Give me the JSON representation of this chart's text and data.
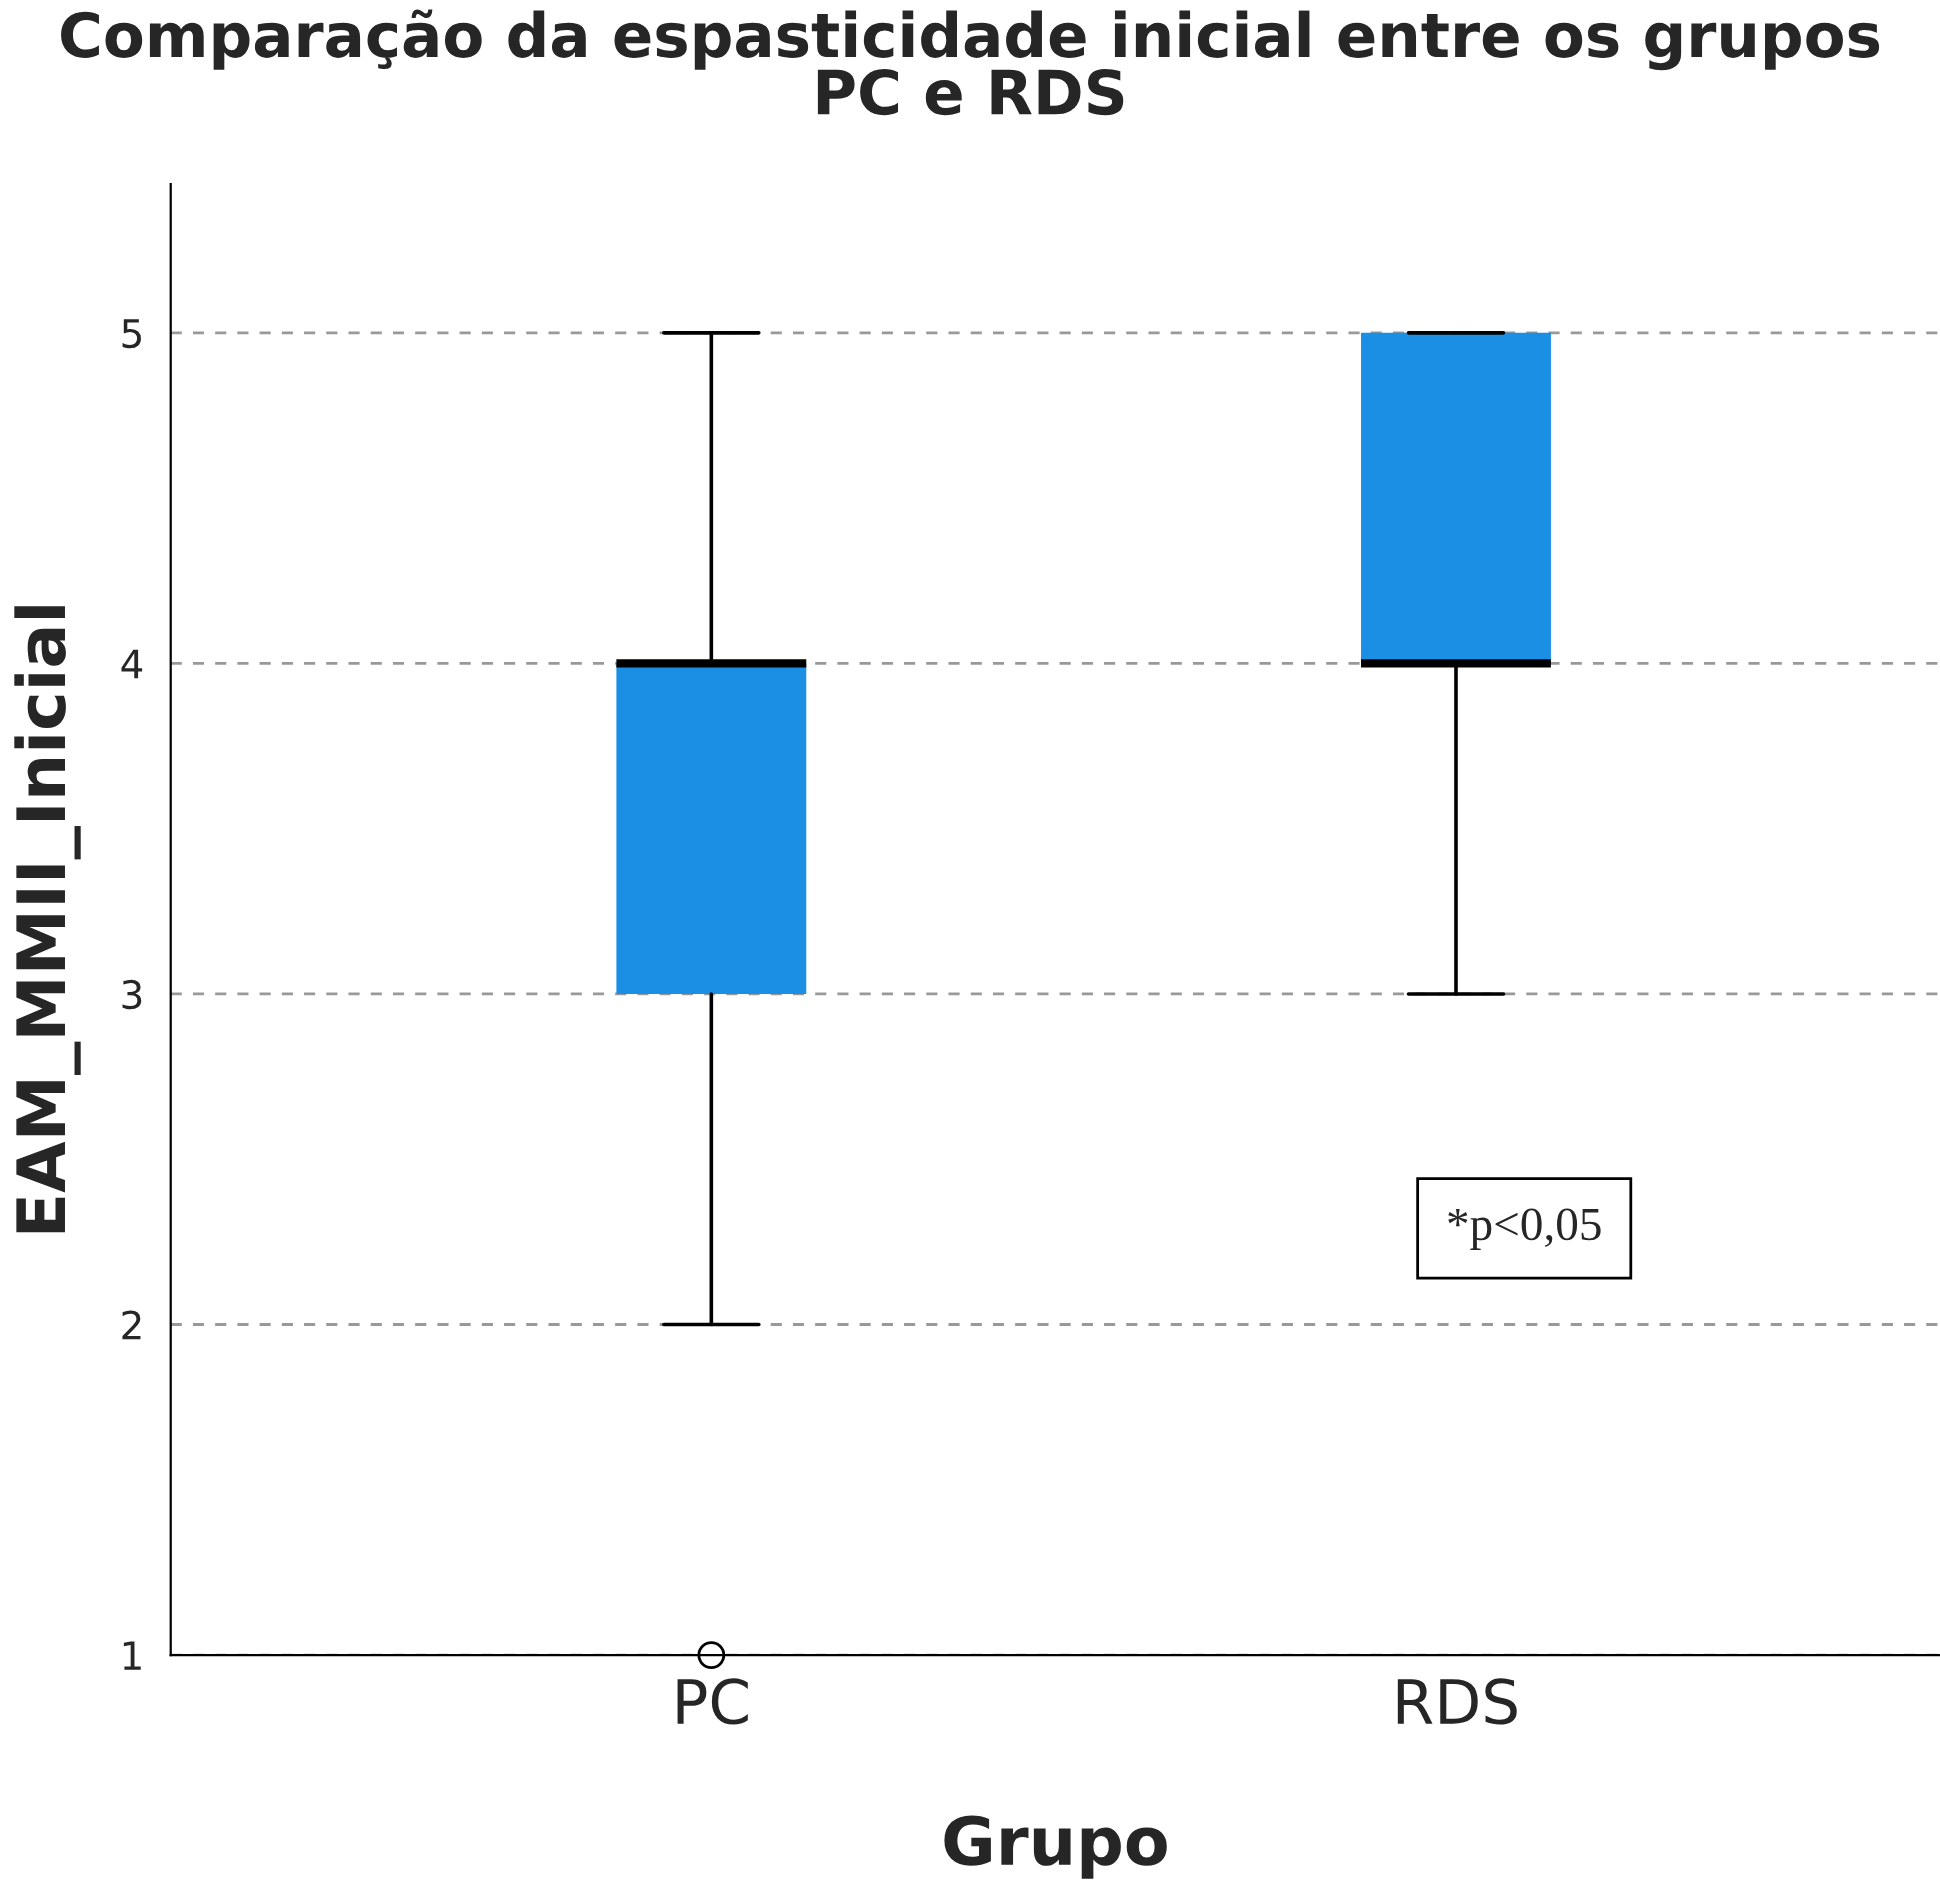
{
  "chart_data": {
    "type": "box",
    "title": "Comparação da espasticidade inicial entre os grupos\nPC e RDS",
    "xlabel": "Grupo",
    "ylabel": "EAM_MMII_Inicial",
    "categories": [
      "PC",
      "RDS"
    ],
    "color": "#1a8fe3",
    "boxes": [
      {
        "low": 2,
        "q1": 3,
        "median": 4,
        "q3": 4,
        "high": 5,
        "outliers": [
          1
        ]
      },
      {
        "low": 3,
        "q1": 4,
        "median": 4,
        "q3": 5,
        "high": 5
      }
    ],
    "ylim": [
      1,
      5.45
    ],
    "yticks": [
      1,
      2,
      3,
      4,
      5
    ],
    "grid": "y",
    "legend": false,
    "annotations": [
      "*p<0,05"
    ]
  }
}
